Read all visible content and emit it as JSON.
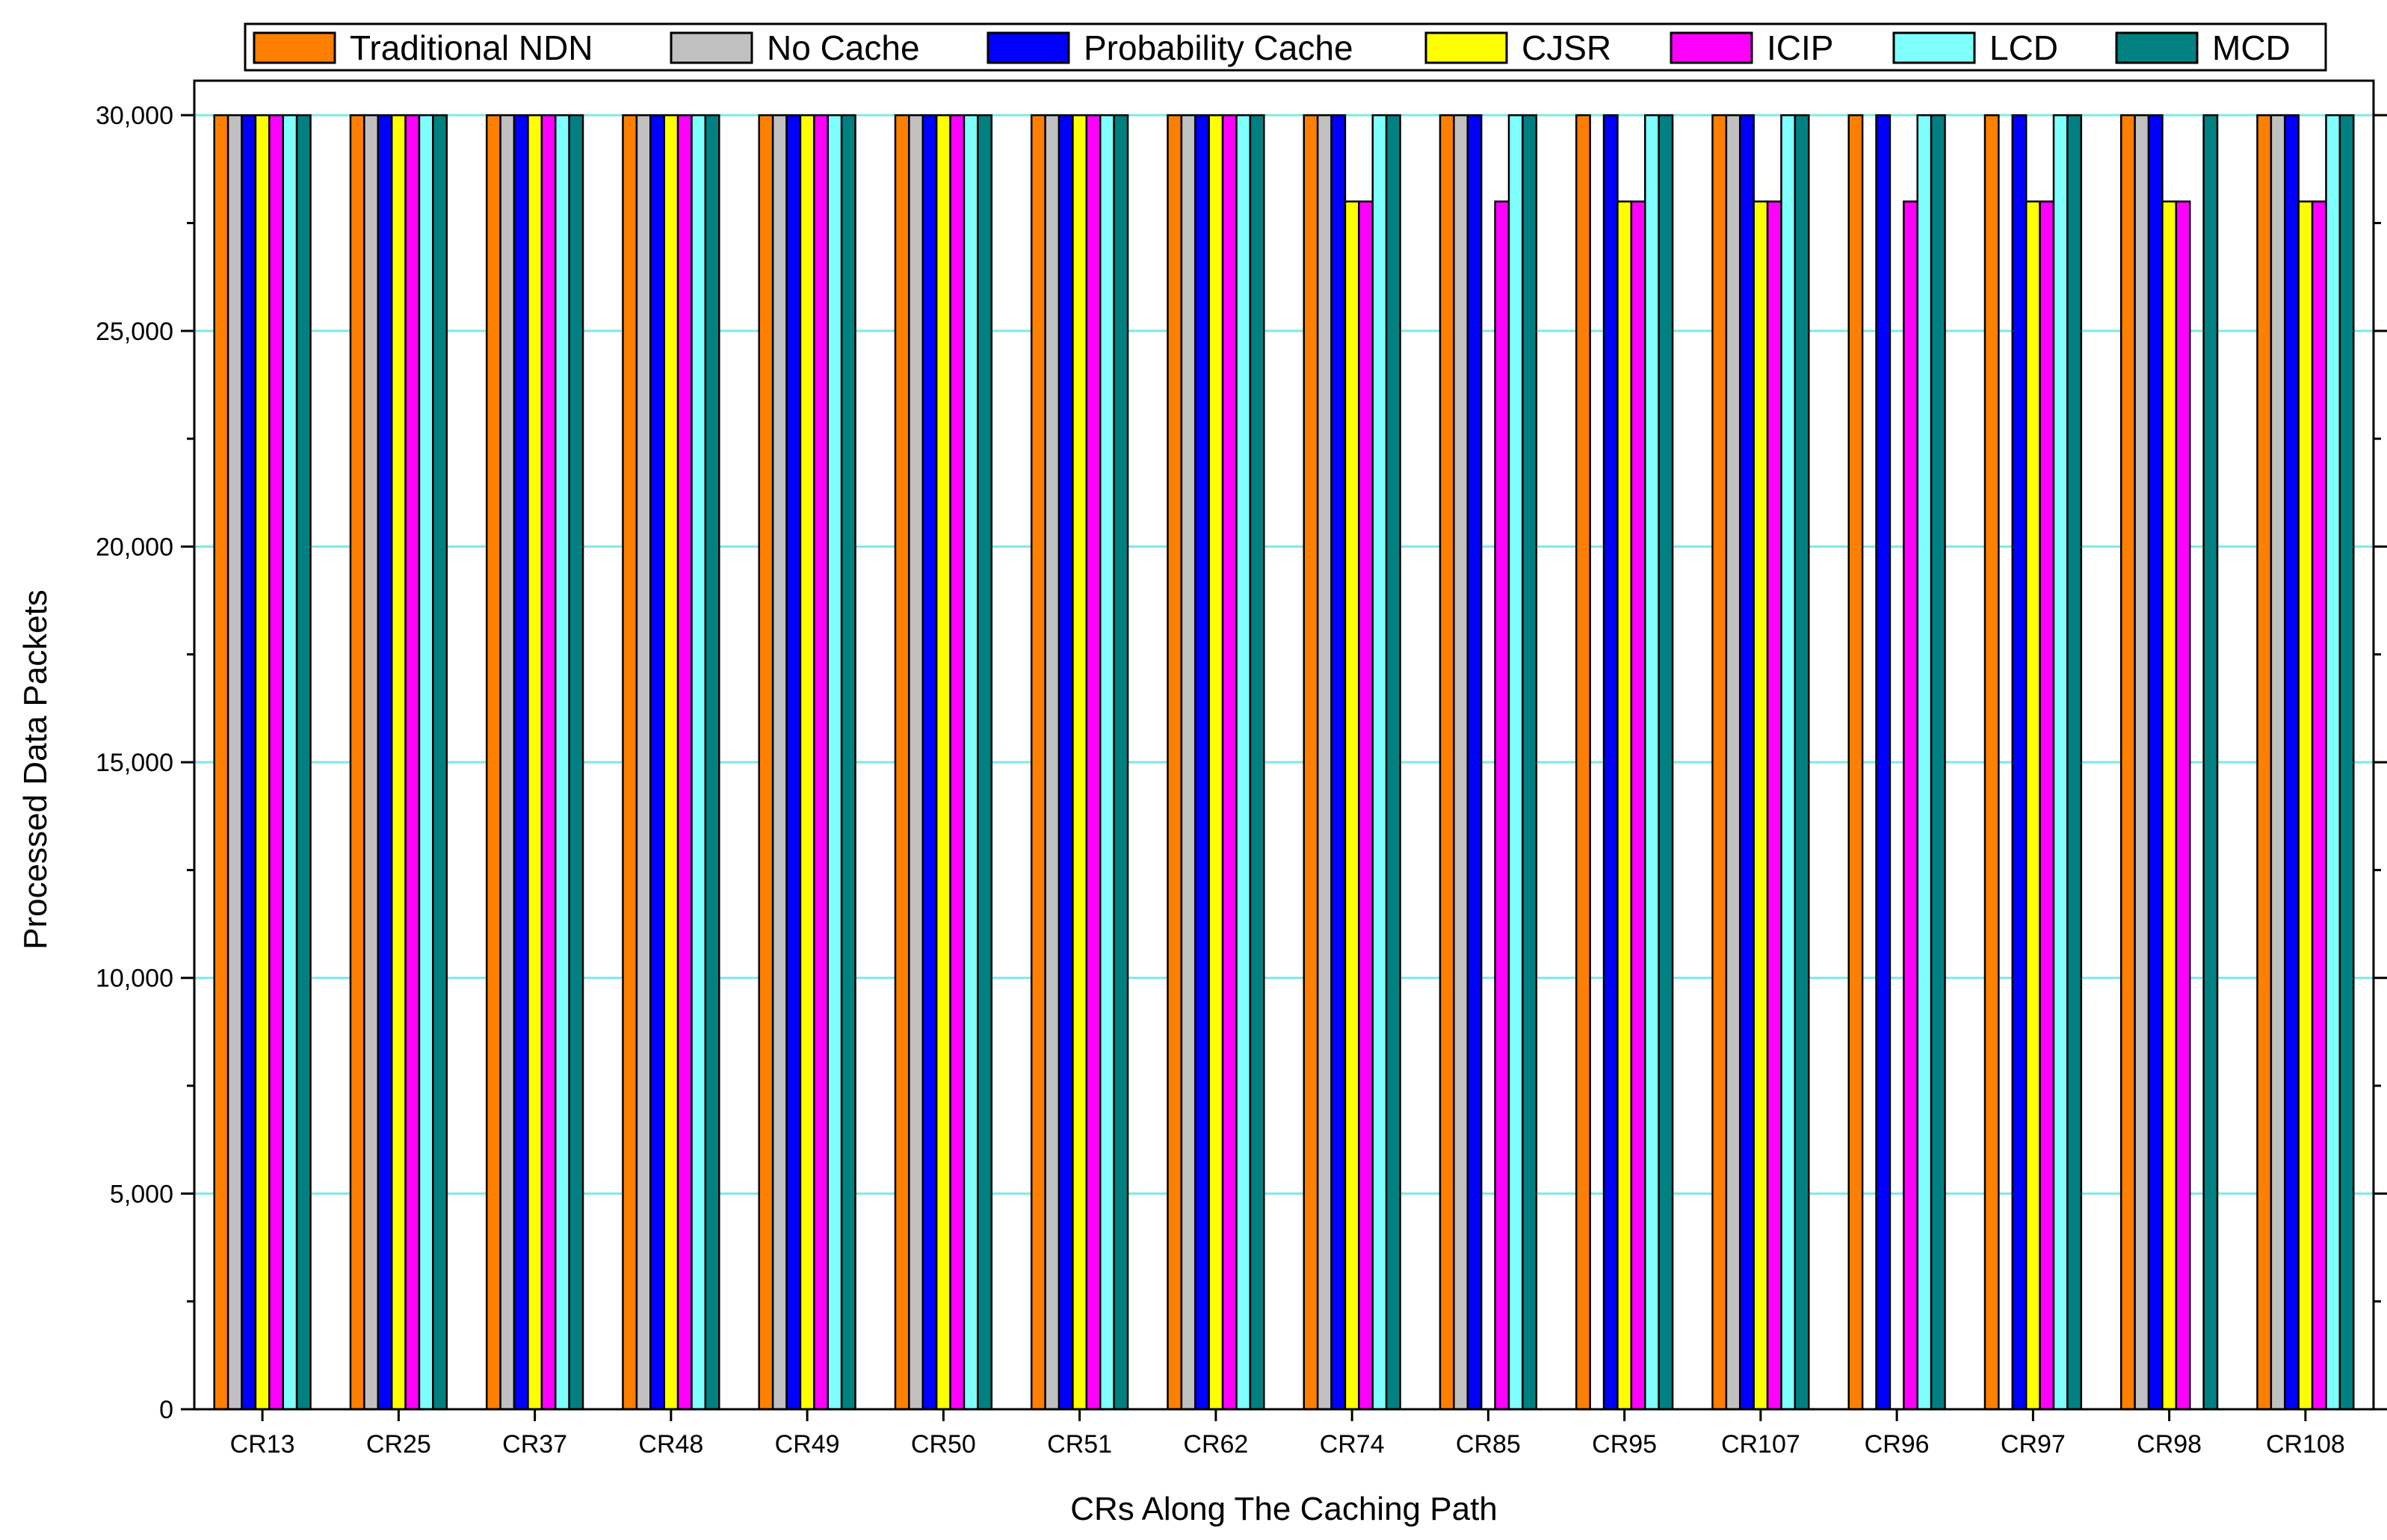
{
  "chart_data": {
    "type": "bar",
    "title": "",
    "xlabel": "CRs Along The Caching Path",
    "ylabel": "Processed Data Packets",
    "ylim": [
      0,
      30000
    ],
    "ymax_axis": 30800,
    "yticks": [
      0,
      5000,
      10000,
      15000,
      20000,
      25000,
      30000
    ],
    "ytick_labels": [
      "0",
      "5,000",
      "10,000",
      "15,000",
      "20,000",
      "25,000",
      "30,000"
    ],
    "grid": true,
    "grid_color": "#7fe8e8",
    "legend_position": "top",
    "categories": [
      "CR13",
      "CR25",
      "CR37",
      "CR48",
      "CR49",
      "CR50",
      "CR51",
      "CR62",
      "CR74",
      "CR85",
      "CR95",
      "CR107",
      "CR96",
      "CR97",
      "CR98",
      "CR108"
    ],
    "series": [
      {
        "name": "Traditional NDN",
        "color": "#ff8000",
        "values": [
          30000,
          30000,
          30000,
          30000,
          30000,
          30000,
          30000,
          30000,
          30000,
          30000,
          30000,
          30000,
          30000,
          30000,
          30000,
          30000
        ]
      },
      {
        "name": "No Cache",
        "color": "#c0c0c0",
        "values": [
          30000,
          30000,
          30000,
          30000,
          30000,
          30000,
          30000,
          30000,
          30000,
          30000,
          0,
          30000,
          0,
          0,
          30000,
          30000
        ]
      },
      {
        "name": "Probability Cache",
        "color": "#0000ff",
        "values": [
          30000,
          30000,
          30000,
          30000,
          30000,
          30000,
          30000,
          30000,
          30000,
          30000,
          30000,
          30000,
          30000,
          30000,
          30000,
          30000
        ]
      },
      {
        "name": "CJSR",
        "color": "#ffff00",
        "values": [
          30000,
          30000,
          30000,
          30000,
          30000,
          30000,
          30000,
          30000,
          28000,
          0,
          28000,
          28000,
          0,
          28000,
          28000,
          28000
        ]
      },
      {
        "name": "ICIP",
        "color": "#ff00ff",
        "values": [
          30000,
          30000,
          30000,
          30000,
          30000,
          30000,
          30000,
          30000,
          28000,
          28000,
          28000,
          28000,
          28000,
          28000,
          28000,
          28000
        ]
      },
      {
        "name": "LCD",
        "color": "#80ffff",
        "values": [
          30000,
          30000,
          30000,
          30000,
          30000,
          30000,
          30000,
          30000,
          30000,
          30000,
          30000,
          30000,
          30000,
          30000,
          0,
          30000
        ]
      },
      {
        "name": "MCD",
        "color": "#008080",
        "values": [
          30000,
          30000,
          30000,
          30000,
          30000,
          30000,
          30000,
          30000,
          30000,
          30000,
          30000,
          30000,
          30000,
          30000,
          30000,
          30000
        ]
      }
    ]
  }
}
